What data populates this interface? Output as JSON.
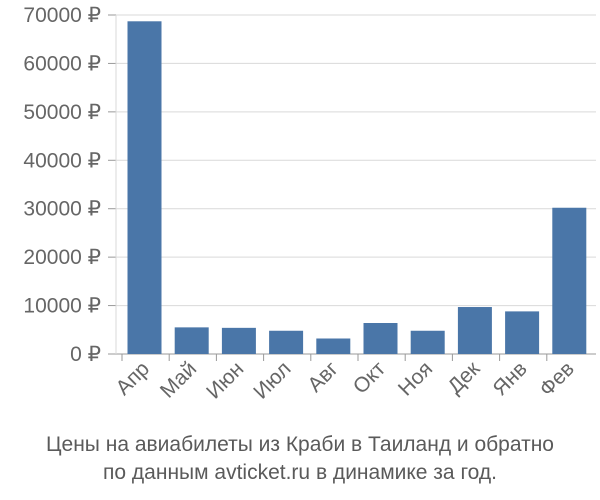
{
  "chart_data": {
    "type": "bar",
    "categories": [
      "Апр",
      "Май",
      "Июн",
      "Июл",
      "Авг",
      "Окт",
      "Ноя",
      "Дек",
      "Янв",
      "Фев"
    ],
    "values": [
      68700,
      5500,
      5400,
      4800,
      3200,
      6400,
      4800,
      9700,
      8800,
      30200
    ],
    "ylim": [
      0,
      70000
    ],
    "yticks": [
      0,
      10000,
      20000,
      30000,
      40000,
      50000,
      60000,
      70000
    ],
    "ytick_labels": [
      "0 ₽",
      "10000 ₽",
      "20000 ₽",
      "30000 ₽",
      "40000 ₽",
      "50000 ₽",
      "60000 ₽",
      "70000 ₽"
    ],
    "grid": true,
    "bar_color": "#4a76a8",
    "grid_color": "#d9d9d9",
    "axis_color": "#999999",
    "caption_line1": "Цены на авиабилеты из Краби в Таиланд и обратно",
    "caption_line2": "по данным avticket.ru в динамике за год."
  }
}
